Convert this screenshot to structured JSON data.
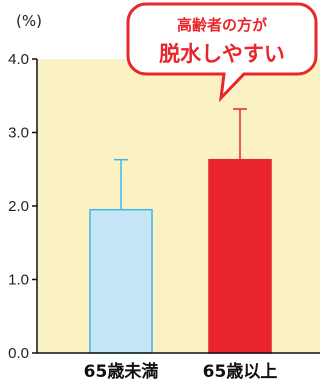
{
  "chart_data": {
    "type": "bar",
    "unit": "(%)",
    "categories": [
      "65歳未満",
      "65歳以上"
    ],
    "values": [
      1.95,
      2.63
    ],
    "error_upper": [
      2.63,
      3.32
    ],
    "ylim": [
      0,
      4.0
    ],
    "yticks": [
      "0.0",
      "1.0",
      "2.0",
      "3.0",
      "4.0"
    ],
    "ytick_values": [
      0,
      1,
      2,
      3,
      4
    ],
    "xlabel": "",
    "ylabel": "",
    "grid": false,
    "colors": {
      "plot_background": "#fbf2c4",
      "bar_fill": [
        "#c6e6f7",
        "#e8262b"
      ],
      "bar_stroke": [
        "#41b8e4",
        "#e8262b"
      ],
      "axis": "#111111"
    }
  },
  "callout": {
    "line1": "高齢者の方が",
    "line2": "脱水しやすい",
    "colors": {
      "border": "#e8262b",
      "text": "#e8262b",
      "fill": "#ffffff"
    }
  }
}
